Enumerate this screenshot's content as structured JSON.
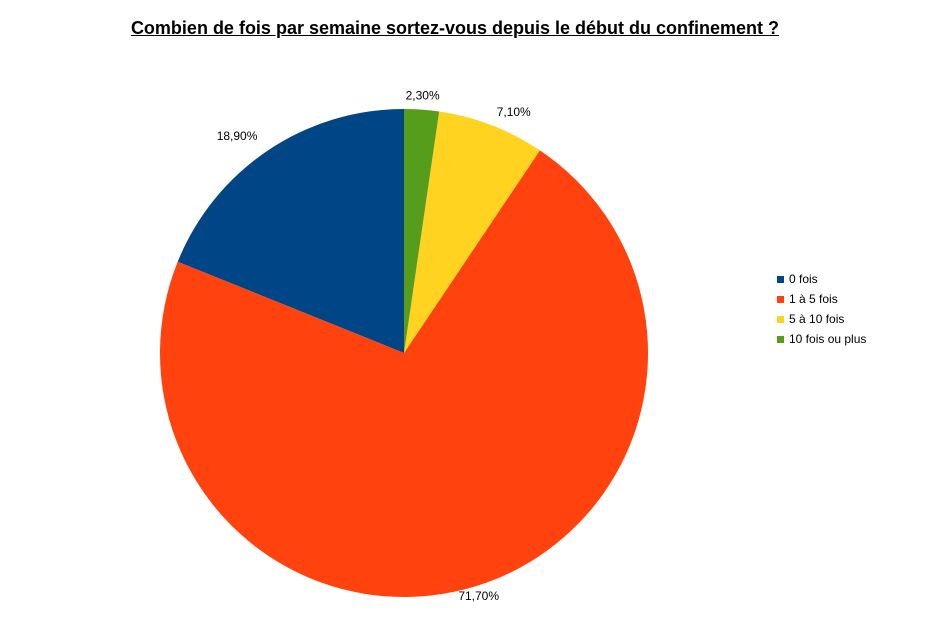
{
  "chart_data": {
    "type": "pie",
    "title": "Combien de fois par semaine sortez-vous depuis le début du confinement ?",
    "categories": [
      "0 fois",
      "1 à 5 fois",
      "5 à 10 fois",
      "10 fois ou plus"
    ],
    "values": [
      18.9,
      71.7,
      7.1,
      2.3
    ],
    "value_labels": [
      "18,90%",
      "71,70%",
      "7,10%",
      "2,30%"
    ],
    "colors": [
      "#004586",
      "#ff420e",
      "#ffd320",
      "#579d1c"
    ],
    "start_angle_deg": 0,
    "direction": "counterclockwise",
    "legend_position": "right"
  }
}
